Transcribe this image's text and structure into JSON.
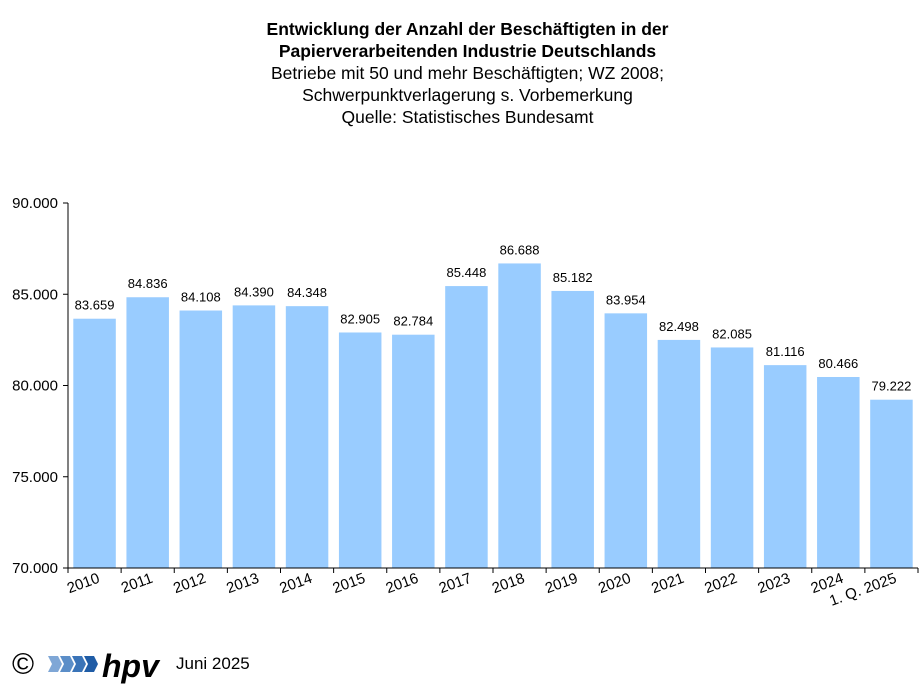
{
  "title": {
    "line1": "Entwicklung der Anzahl der Beschäftigten in der",
    "line2": "Papierverarbeitenden Industrie Deutschlands",
    "line3": "Betriebe mit 50 und mehr Beschäftigten; WZ 2008;",
    "line4": "Schwerpunktverlagerung s. Vorbemerkung",
    "line5": "Quelle: Statistisches Bundesamt"
  },
  "footer": {
    "copyright": "©",
    "logo_text": "hpv",
    "date": "Juni 2025"
  },
  "colors": {
    "bar": "#99ccff",
    "axis": "#000000"
  },
  "chart_data": {
    "type": "bar",
    "categories": [
      "2010",
      "2011",
      "2012",
      "2013",
      "2014",
      "2015",
      "2016",
      "2017",
      "2018",
      "2019",
      "2020",
      "2021",
      "2022",
      "2023",
      "2024",
      "1. Q. 2025"
    ],
    "values": [
      83659,
      84836,
      84108,
      84390,
      84348,
      82905,
      82784,
      85448,
      86688,
      85182,
      83954,
      82498,
      82085,
      81116,
      80466,
      79222
    ],
    "value_labels": [
      "83.659",
      "84.836",
      "84.108",
      "84.390",
      "84.348",
      "82.905",
      "82.784",
      "85.448",
      "86.688",
      "85.182",
      "83.954",
      "82.498",
      "82.085",
      "81.116",
      "80.466",
      "79.222"
    ],
    "yticks": [
      70000,
      75000,
      80000,
      85000,
      90000
    ],
    "ytick_labels": [
      "70.000",
      "75.000",
      "80.000",
      "85.000",
      "90.000"
    ],
    "ylim": [
      70000,
      90000
    ],
    "grid": false,
    "legend": "none"
  }
}
